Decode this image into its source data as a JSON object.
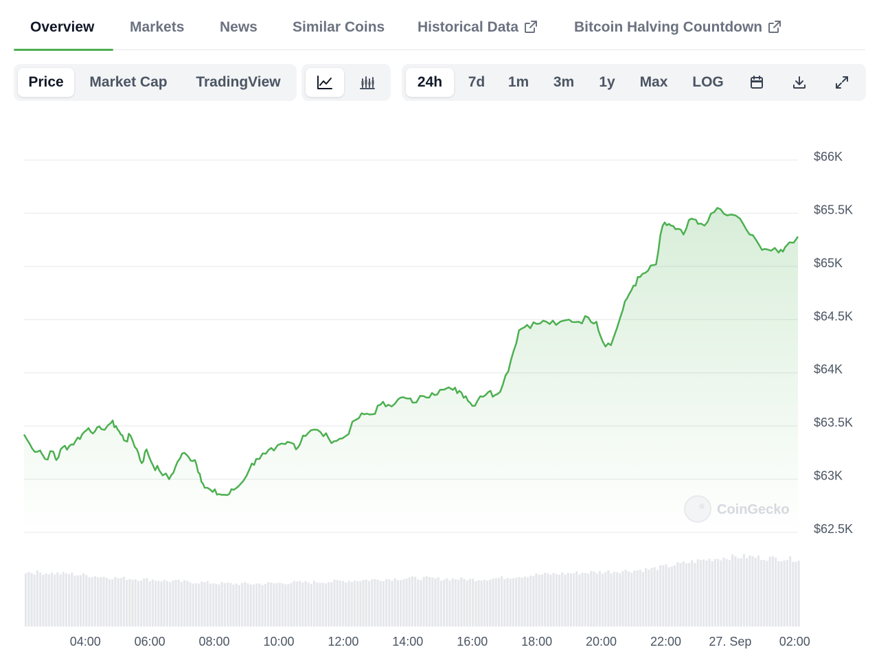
{
  "tabs": [
    {
      "label": "Overview",
      "active": true
    },
    {
      "label": "Markets"
    },
    {
      "label": "News"
    },
    {
      "label": "Similar Coins"
    },
    {
      "label": "Historical Data",
      "icon": "external-link-icon"
    },
    {
      "label": "Bitcoin Halving Countdown",
      "icon": "external-link-icon"
    }
  ],
  "chart_tabs": [
    {
      "label": "Price",
      "active": true
    },
    {
      "label": "Market Cap"
    },
    {
      "label": "TradingView"
    }
  ],
  "chart_type_buttons": [
    {
      "icon": "line-chart-icon",
      "active": true
    },
    {
      "icon": "candlestick-chart-icon"
    }
  ],
  "ranges": [
    {
      "label": "24h",
      "active": true
    },
    {
      "label": "7d"
    },
    {
      "label": "1m"
    },
    {
      "label": "3m"
    },
    {
      "label": "1y"
    },
    {
      "label": "Max"
    },
    {
      "label": "LOG"
    }
  ],
  "toolbar_icons": [
    "calendar-icon",
    "download-icon",
    "fullscreen-icon"
  ],
  "watermark": "CoinGecko",
  "colors": {
    "line": "#4caf50",
    "accent": "#4caf50",
    "volume": "#e5e7eb",
    "grid": "#e5e7eb"
  },
  "chart_data": {
    "type": "area",
    "ylim": [
      62500,
      66000
    ],
    "y_ticks": [
      {
        "value": 66000,
        "label": "$66K"
      },
      {
        "value": 65500,
        "label": "$65.5K"
      },
      {
        "value": 65000,
        "label": "$65K"
      },
      {
        "value": 64500,
        "label": "$64.5K"
      },
      {
        "value": 64000,
        "label": "$64K"
      },
      {
        "value": 63500,
        "label": "$63.5K"
      },
      {
        "value": 63000,
        "label": "$63K"
      },
      {
        "value": 62500,
        "label": "$62.5K"
      }
    ],
    "x_ticks": [
      "04:00",
      "06:00",
      "08:00",
      "10:00",
      "12:00",
      "14:00",
      "16:00",
      "18:00",
      "20:00",
      "22:00",
      "27. Sep",
      "02:00"
    ],
    "x_range_hours": [
      2.1,
      26.1
    ],
    "series": [
      {
        "values": [
          [
            2.1,
            63420
          ],
          [
            2.35,
            63290
          ],
          [
            2.6,
            63270
          ],
          [
            2.75,
            63190
          ],
          [
            3.0,
            63260
          ],
          [
            3.1,
            63180
          ],
          [
            3.3,
            63300
          ],
          [
            3.5,
            63310
          ],
          [
            3.7,
            63360
          ],
          [
            3.9,
            63420
          ],
          [
            4.1,
            63480
          ],
          [
            4.3,
            63450
          ],
          [
            4.5,
            63470
          ],
          [
            4.8,
            63530
          ],
          [
            4.95,
            63500
          ],
          [
            5.1,
            63420
          ],
          [
            5.25,
            63360
          ],
          [
            5.4,
            63410
          ],
          [
            5.6,
            63280
          ],
          [
            5.75,
            63150
          ],
          [
            5.9,
            63280
          ],
          [
            6.1,
            63130
          ],
          [
            6.3,
            63080
          ],
          [
            6.6,
            63000
          ],
          [
            6.8,
            63120
          ],
          [
            7.0,
            63240
          ],
          [
            7.2,
            63210
          ],
          [
            7.4,
            63180
          ],
          [
            7.55,
            63050
          ],
          [
            7.7,
            62920
          ],
          [
            7.95,
            62880
          ],
          [
            8.15,
            62860
          ],
          [
            8.4,
            62850
          ],
          [
            8.6,
            62900
          ],
          [
            8.8,
            62950
          ],
          [
            9.1,
            63100
          ],
          [
            9.3,
            63190
          ],
          [
            9.6,
            63240
          ],
          [
            9.85,
            63270
          ],
          [
            10.2,
            63330
          ],
          [
            10.4,
            63340
          ],
          [
            10.6,
            63300
          ],
          [
            10.75,
            63410
          ],
          [
            11.0,
            63460
          ],
          [
            11.3,
            63440
          ],
          [
            11.55,
            63380
          ],
          [
            11.8,
            63360
          ],
          [
            12.05,
            63400
          ],
          [
            12.4,
            63560
          ],
          [
            12.65,
            63610
          ],
          [
            12.9,
            63610
          ],
          [
            13.15,
            63700
          ],
          [
            13.4,
            63700
          ],
          [
            13.7,
            63750
          ],
          [
            13.95,
            63760
          ],
          [
            14.15,
            63720
          ],
          [
            14.5,
            63780
          ],
          [
            14.75,
            63810
          ],
          [
            15.0,
            63840
          ],
          [
            15.4,
            63840
          ],
          [
            15.6,
            63830
          ],
          [
            15.8,
            63780
          ],
          [
            16.0,
            63690
          ],
          [
            16.25,
            63780
          ],
          [
            16.5,
            63820
          ],
          [
            16.7,
            63790
          ],
          [
            16.95,
            63890
          ],
          [
            17.2,
            64120
          ],
          [
            17.45,
            64400
          ],
          [
            17.7,
            64450
          ],
          [
            18.0,
            64460
          ],
          [
            18.3,
            64480
          ],
          [
            18.6,
            64450
          ],
          [
            19.0,
            64500
          ],
          [
            19.3,
            64480
          ],
          [
            19.6,
            64520
          ],
          [
            19.85,
            64480
          ],
          [
            20.05,
            64290
          ],
          [
            20.3,
            64260
          ],
          [
            20.6,
            64530
          ],
          [
            20.8,
            64700
          ],
          [
            21.0,
            64820
          ],
          [
            21.2,
            64900
          ],
          [
            21.45,
            64960
          ],
          [
            21.7,
            65020
          ],
          [
            21.9,
            65380
          ],
          [
            22.1,
            65400
          ],
          [
            22.3,
            65350
          ],
          [
            22.55,
            65300
          ],
          [
            22.8,
            65450
          ],
          [
            23.0,
            65400
          ],
          [
            23.3,
            65420
          ],
          [
            23.6,
            65550
          ],
          [
            23.9,
            65480
          ],
          [
            24.3,
            65450
          ],
          [
            24.6,
            65300
          ],
          [
            24.9,
            65200
          ],
          [
            25.15,
            65160
          ],
          [
            25.5,
            65130
          ],
          [
            25.7,
            65180
          ],
          [
            26.1,
            65280
          ]
        ]
      }
    ],
    "volume": {
      "values": [
        [
          2.1,
          0.78
        ],
        [
          2.5,
          0.77
        ],
        [
          3.0,
          0.76
        ],
        [
          3.5,
          0.75
        ],
        [
          4.0,
          0.73
        ],
        [
          4.5,
          0.71
        ],
        [
          5.0,
          0.69
        ],
        [
          5.5,
          0.68
        ],
        [
          6.0,
          0.67
        ],
        [
          6.5,
          0.65
        ],
        [
          7.0,
          0.64
        ],
        [
          7.5,
          0.63
        ],
        [
          8.0,
          0.62
        ],
        [
          8.5,
          0.61
        ],
        [
          9.0,
          0.61
        ],
        [
          9.5,
          0.61
        ],
        [
          10.0,
          0.62
        ],
        [
          10.5,
          0.63
        ],
        [
          11.0,
          0.63
        ],
        [
          11.5,
          0.64
        ],
        [
          12.0,
          0.65
        ],
        [
          12.5,
          0.66
        ],
        [
          13.0,
          0.67
        ],
        [
          13.5,
          0.68
        ],
        [
          14.0,
          0.69
        ],
        [
          14.5,
          0.69
        ],
        [
          15.0,
          0.68
        ],
        [
          15.5,
          0.68
        ],
        [
          16.0,
          0.67
        ],
        [
          16.5,
          0.68
        ],
        [
          17.0,
          0.7
        ],
        [
          17.5,
          0.72
        ],
        [
          18.0,
          0.74
        ],
        [
          18.5,
          0.75
        ],
        [
          19.0,
          0.76
        ],
        [
          19.5,
          0.77
        ],
        [
          20.0,
          0.78
        ],
        [
          20.5,
          0.79
        ],
        [
          21.0,
          0.8
        ],
        [
          21.5,
          0.82
        ],
        [
          22.0,
          0.86
        ],
        [
          22.5,
          0.9
        ],
        [
          23.0,
          0.94
        ],
        [
          23.5,
          0.97
        ],
        [
          24.0,
          0.99
        ],
        [
          24.5,
          1.0
        ],
        [
          25.0,
          0.98
        ],
        [
          25.5,
          0.97
        ],
        [
          26.1,
          0.96
        ]
      ]
    }
  }
}
